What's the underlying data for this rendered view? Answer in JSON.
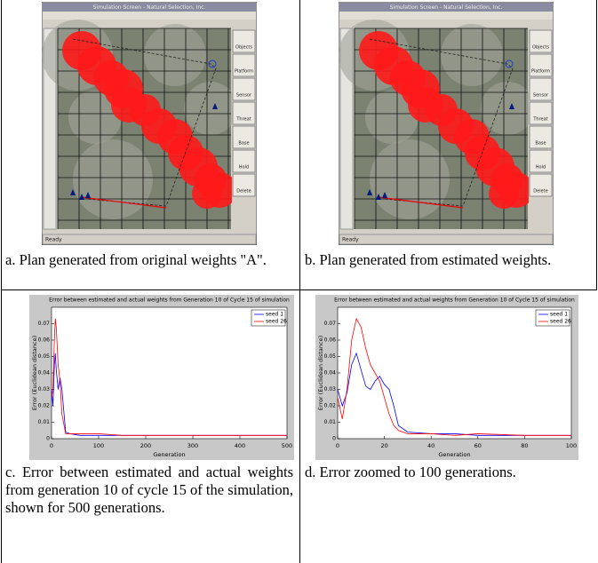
{
  "screenshots": [
    {
      "title": "Simulation Screen - Natural Selection, Inc.",
      "buttons": [
        "Objects",
        "Platform",
        "Sensor",
        "Threat",
        "Base",
        "Hold",
        "Delete"
      ],
      "status": "Ready"
    },
    {
      "title": "Simulation Screen - Natural Selection, Inc.",
      "buttons": [
        "Objects",
        "Platform",
        "Sensor",
        "Threat",
        "Base",
        "Hold",
        "Delete"
      ],
      "status": "Ready"
    }
  ],
  "captions": [
    "a. Plan generated from original weights \"A\".",
    "b. Plan generated from estimated weights.",
    "c. Error between estimated and actual weights from generation 10 of cycle 15 of the simulation, shown for 500 generations.",
    "d. Error zoomed to 100 generations."
  ],
  "chart_data": [
    {
      "type": "line",
      "title": "Error between estimated and actual weights from Generation 10 of Cycle 15 of simulation",
      "x_label": "Generation",
      "y_label": "Error (Euclidean distance)",
      "x": [
        0,
        3,
        6,
        8,
        10,
        14,
        18,
        22,
        30,
        40,
        60,
        100,
        150,
        200,
        250,
        300,
        350,
        400,
        450,
        500
      ],
      "series": [
        {
          "name": "seed 1",
          "color": "#0000ff",
          "values": [
            0.03,
            0.02,
            0.045,
            0.052,
            0.042,
            0.03,
            0.037,
            0.03,
            0.004,
            0.003,
            0.002,
            0.002,
            0.002,
            0.002,
            0.002,
            0.002,
            0.002,
            0.002,
            0.002,
            0.002
          ]
        },
        {
          "name": "seed 26",
          "color": "#ff0000",
          "values": [
            0.025,
            0.03,
            0.06,
            0.073,
            0.068,
            0.045,
            0.035,
            0.015,
            0.003,
            0.003,
            0.003,
            0.003,
            0.002,
            0.002,
            0.002,
            0.002,
            0.002,
            0.002,
            0.002,
            0.002
          ]
        }
      ],
      "xlim": [
        0,
        500
      ],
      "xticks": [
        0,
        100,
        200,
        300,
        400,
        500
      ],
      "ylim": [
        0,
        0.08
      ],
      "yticks": [
        0,
        0.01,
        0.02,
        0.03,
        0.04,
        0.05,
        0.06,
        0.07
      ],
      "legend": "upper right"
    },
    {
      "type": "line",
      "title": "Error between estimated and actual weights from Generation 10 of Cycle 15 of simulation",
      "x_label": "Generation",
      "y_label": "Error (Euclidean distance)",
      "x": [
        0,
        2,
        4,
        6,
        8,
        10,
        12,
        14,
        16,
        18,
        20,
        22,
        24,
        26,
        30,
        40,
        50,
        60,
        80,
        100
      ],
      "series": [
        {
          "name": "seed 1",
          "color": "#0000ff",
          "values": [
            0.03,
            0.02,
            0.028,
            0.045,
            0.052,
            0.042,
            0.032,
            0.03,
            0.035,
            0.038,
            0.033,
            0.03,
            0.02,
            0.008,
            0.004,
            0.003,
            0.003,
            0.002,
            0.002,
            0.002
          ]
        },
        {
          "name": "seed 26",
          "color": "#ff0000",
          "values": [
            0.025,
            0.012,
            0.03,
            0.06,
            0.073,
            0.068,
            0.055,
            0.045,
            0.04,
            0.035,
            0.025,
            0.015,
            0.008,
            0.005,
            0.003,
            0.003,
            0.002,
            0.003,
            0.002,
            0.002
          ]
        }
      ],
      "xlim": [
        0,
        100
      ],
      "xticks": [
        0,
        20,
        40,
        60,
        80,
        100
      ],
      "ylim": [
        0,
        0.08
      ],
      "yticks": [
        0,
        0.01,
        0.02,
        0.03,
        0.04,
        0.05,
        0.06,
        0.07
      ],
      "legend": "upper right"
    }
  ]
}
